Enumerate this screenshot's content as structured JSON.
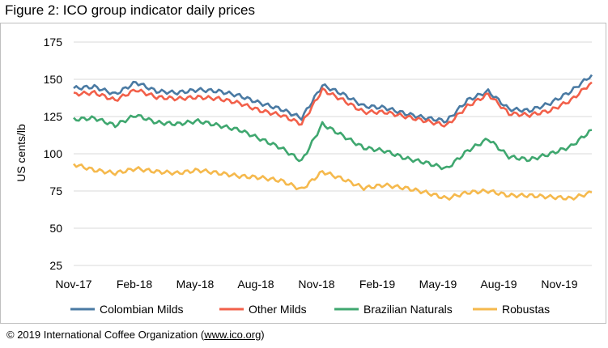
{
  "title": "Figure 2: ICO group indicator daily prices",
  "footer": {
    "text": "© 2019 International Coffee Organization (",
    "link": "www.ico.org",
    "close": ")"
  },
  "chart_data": {
    "type": "line",
    "ylabel": "US cents/lb",
    "ylim": [
      25,
      175
    ],
    "yticks": [
      25,
      50,
      75,
      100,
      125,
      150,
      175
    ],
    "xlim": [
      "Nov-17",
      "Dec-19"
    ],
    "xticks": [
      "Nov-17",
      "Feb-18",
      "May-18",
      "Aug-18",
      "Nov-18",
      "Feb-19",
      "May-19",
      "Aug-19",
      "Nov-19"
    ],
    "grid": "horizontal",
    "legend": "bottom",
    "x": [
      "Nov-17",
      "Dec-17",
      "Jan-18",
      "Feb-18",
      "Mar-18",
      "Apr-18",
      "May-18",
      "Jun-18",
      "Jul-18",
      "Aug-18",
      "Sep-18",
      "Oct-18",
      "Nov-18",
      "Dec-18",
      "Jan-19",
      "Feb-19",
      "Mar-19",
      "Apr-19",
      "May-19",
      "Jun-19",
      "Jul-19",
      "Aug-19",
      "Sep-19",
      "Oct-19",
      "Nov-19",
      "Dec-19"
    ],
    "series": [
      {
        "name": "Colombian Milds",
        "color": "#4a7aa3",
        "values": [
          144,
          145,
          140,
          148,
          142,
          141,
          143,
          142,
          139,
          134,
          130,
          124,
          146,
          140,
          132,
          131,
          127,
          124,
          122,
          136,
          142,
          130,
          129,
          134,
          142,
          153
        ]
      },
      {
        "name": "Other Milds",
        "color": "#f2604a",
        "values": [
          140,
          141,
          136,
          143,
          138,
          137,
          138,
          137,
          134,
          129,
          126,
          120,
          143,
          136,
          128,
          128,
          125,
          122,
          119,
          132,
          140,
          127,
          126,
          129,
          136,
          148
        ]
      },
      {
        "name": "Brazilian Naturals",
        "color": "#3fa76f",
        "values": [
          123,
          124,
          119,
          126,
          121,
          120,
          122,
          119,
          116,
          110,
          104,
          95,
          120,
          112,
          104,
          102,
          97,
          94,
          90,
          102,
          110,
          98,
          96,
          100,
          105,
          116
        ]
      },
      {
        "name": "Robustas",
        "color": "#f5b94d",
        "values": [
          93,
          89,
          87,
          90,
          88,
          87,
          89,
          87,
          85,
          84,
          82,
          76,
          88,
          83,
          77,
          79,
          77,
          74,
          70,
          74,
          75,
          72,
          72,
          71,
          70,
          74
        ]
      }
    ]
  }
}
